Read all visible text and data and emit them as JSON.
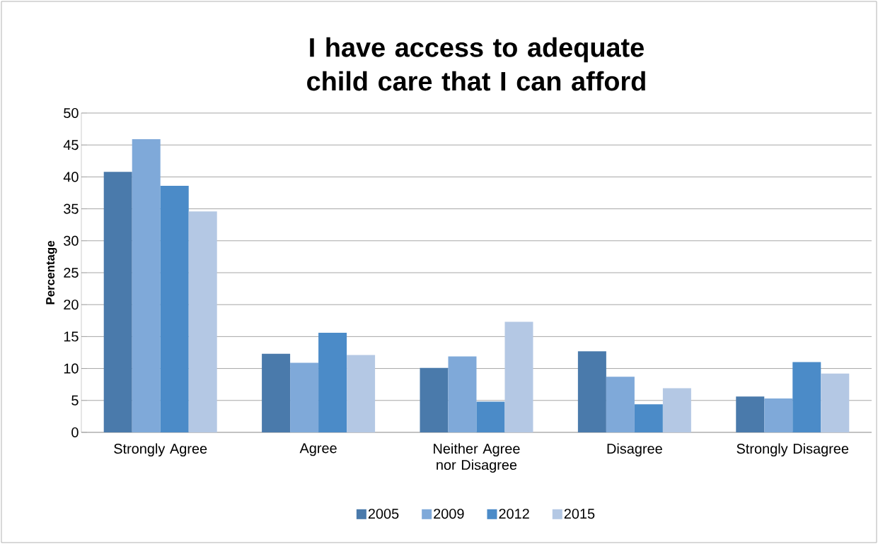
{
  "chart_data": {
    "type": "bar",
    "title": "I have access to adequate child care that I can afford",
    "ylabel": "Percentage",
    "categories": [
      "Strongly Agree",
      "Agree",
      "Neither Agree nor Disagree",
      "Disagree",
      "Strongly Disagree"
    ],
    "series": [
      {
        "name": "2005",
        "color": "#4a7aab",
        "values": [
          40.8,
          12.3,
          10.1,
          12.7,
          5.6
        ]
      },
      {
        "name": "2009",
        "color": "#7fa9d9",
        "values": [
          45.9,
          10.9,
          11.9,
          8.7,
          5.3
        ]
      },
      {
        "name": "2012",
        "color": "#4b8bc8",
        "values": [
          38.6,
          15.6,
          4.8,
          4.4,
          11.0
        ]
      },
      {
        "name": "2015",
        "color": "#b4c8e4",
        "values": [
          34.6,
          12.1,
          17.3,
          6.9,
          9.2
        ]
      }
    ],
    "ylim": [
      0,
      50
    ],
    "yticks": [
      0,
      5,
      10,
      15,
      20,
      25,
      30,
      35,
      40,
      45,
      50
    ],
    "grid": "y",
    "legend": "bottom"
  }
}
